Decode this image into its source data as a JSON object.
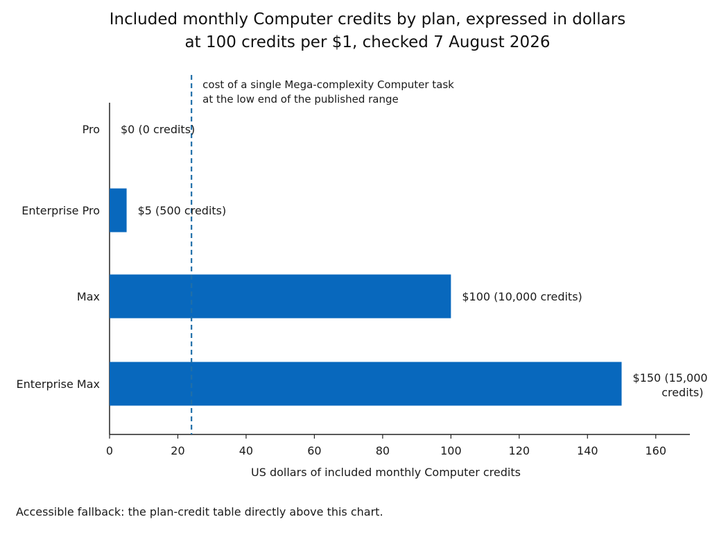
{
  "chart_data": {
    "type": "bar",
    "orientation": "horizontal",
    "title": [
      "Included monthly Computer credits by plan, expressed in dollars",
      "at 100 credits per $1, checked 7 August 2026"
    ],
    "categories": [
      "Pro",
      "Enterprise Pro",
      "Max",
      "Enterprise Max"
    ],
    "values": [
      0,
      5,
      100,
      150
    ],
    "data_labels": [
      [
        "$0 (0 credits)"
      ],
      [
        "$5 (500 credits)"
      ],
      [
        "$100 (10,000 credits)"
      ],
      [
        "$150 (15,000",
        "credits)"
      ]
    ],
    "xlabel": "US dollars of included monthly Computer credits",
    "ylabel": "",
    "xlim": [
      0,
      170
    ],
    "xticks": [
      0,
      20,
      40,
      60,
      80,
      100,
      120,
      140,
      160
    ],
    "grid": false,
    "bar_color": "#0868bd",
    "reference_line": {
      "value": 24,
      "style": "dashed",
      "color": "#1f6fa8",
      "label": [
        "cost of a single Mega-complexity Computer task",
        "at the low end of the published range"
      ]
    }
  },
  "footnote": "Accessible fallback: the plan-credit table directly above this chart."
}
